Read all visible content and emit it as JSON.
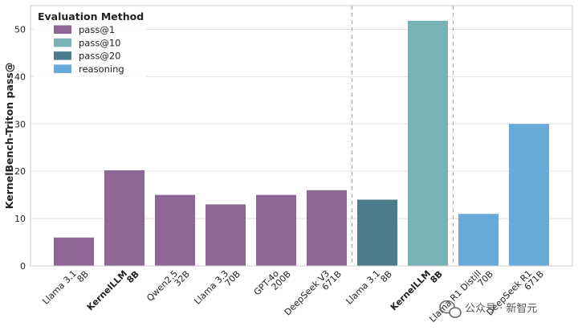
{
  "chart_data": {
    "type": "bar",
    "title": "",
    "xlabel": "",
    "ylabel": "KernelBench-Triton pass@",
    "ylim": [
      0,
      55
    ],
    "yticks": [
      0,
      10,
      20,
      30,
      40,
      50
    ],
    "grid": "y",
    "legend": {
      "title": "Evaluation Method",
      "placement": "top-left",
      "entries": [
        {
          "name": "pass@1",
          "color": "#8e6697"
        },
        {
          "name": "pass@10",
          "color": "#79b2b4"
        },
        {
          "name": "pass@20",
          "color": "#4b7b8d"
        },
        {
          "name": "reasoning",
          "color": "#68a9d9"
        }
      ]
    },
    "bars": [
      {
        "line1": "Llama 3.1",
        "line2": "8B",
        "bold": false,
        "value": 6,
        "method": "pass@1"
      },
      {
        "line1": "KernelLLM",
        "line2": "8B",
        "bold": true,
        "value": 20.2,
        "method": "pass@1"
      },
      {
        "line1": "Qwen2.5",
        "line2": "32B",
        "bold": false,
        "value": 15,
        "method": "pass@1"
      },
      {
        "line1": "Llama 3.3",
        "line2": "70B",
        "bold": false,
        "value": 13,
        "method": "pass@1"
      },
      {
        "line1": "GPT-4o",
        "line2": "200B",
        "bold": false,
        "value": 15,
        "method": "pass@1"
      },
      {
        "line1": "DeepSeek V3",
        "line2": "671B",
        "bold": false,
        "value": 16,
        "method": "pass@1"
      },
      {
        "line1": "Llama 3.1",
        "line2": "8B",
        "bold": false,
        "value": 14,
        "method": "pass@20"
      },
      {
        "line1": "KernelLLM",
        "line2": "8B",
        "bold": true,
        "value": 51.8,
        "method": "pass@10"
      },
      {
        "line1": "Llama R1 Distill",
        "line2": "70B",
        "bold": false,
        "value": 11,
        "method": "reasoning"
      },
      {
        "line1": "DeepSeek R1",
        "line2": "671B",
        "bold": false,
        "value": 30,
        "method": "reasoning"
      }
    ],
    "group_separators_after": [
      5,
      7
    ]
  },
  "watermark": {
    "text": "公众号 · 新智元"
  }
}
